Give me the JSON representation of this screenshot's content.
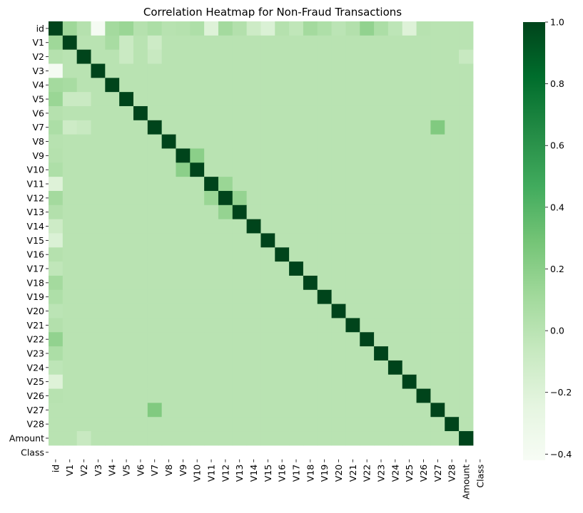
{
  "chart_data": {
    "type": "heatmap",
    "title": "Correlation Heatmap for Non-Fraud Transactions",
    "xlabel": "",
    "ylabel": "",
    "labels": [
      "id",
      "V1",
      "V2",
      "V3",
      "V4",
      "V5",
      "V6",
      "V7",
      "V8",
      "V9",
      "V10",
      "V11",
      "V12",
      "V13",
      "V14",
      "V15",
      "V16",
      "V17",
      "V18",
      "V19",
      "V20",
      "V21",
      "V22",
      "V23",
      "V24",
      "V25",
      "V26",
      "V27",
      "V28",
      "Amount",
      "Class"
    ],
    "colorscale": "Greens",
    "colorbar": {
      "min": -0.42,
      "max": 1.0,
      "ticks": [
        -0.4,
        -0.2,
        0.0,
        0.2,
        0.4,
        0.6,
        0.8,
        1.0
      ],
      "tick_labels": [
        "−0.4",
        "−0.2",
        "0.0",
        "0.2",
        "0.4",
        "0.6",
        "0.8",
        "1.0"
      ]
    },
    "nan_label": "Class",
    "values": [
      [
        1,
        0.12,
        0.02,
        -0.4,
        0.1,
        0.14,
        0.02,
        0.06,
        0.01,
        0.02,
        0.05,
        -0.2,
        0.1,
        0.03,
        -0.1,
        -0.18,
        0.02,
        -0.03,
        0.1,
        0.05,
        -0.01,
        0.03,
        0.17,
        0.06,
        -0.02,
        -0.2,
        0.01,
        0,
        0,
        0,
        null
      ],
      [
        0.12,
        1,
        0,
        0,
        0.08,
        -0.08,
        0,
        -0.1,
        0,
        0,
        0,
        0,
        0,
        0,
        0,
        0,
        0,
        0,
        0,
        0,
        0,
        0,
        0,
        0,
        0,
        0,
        0,
        0,
        0,
        0,
        null
      ],
      [
        0.02,
        0,
        1,
        0,
        0,
        -0.08,
        0,
        -0.07,
        0,
        0,
        0,
        0,
        0,
        0,
        0,
        0,
        0,
        0,
        0,
        0,
        0,
        0,
        0,
        0,
        0,
        0,
        0,
        0,
        0,
        -0.07,
        null
      ],
      [
        -0.4,
        0,
        0,
        1,
        0,
        0,
        0,
        0,
        0,
        0,
        0,
        0,
        0,
        0,
        0,
        0,
        0,
        0,
        0,
        0,
        0,
        0,
        0,
        0,
        0,
        0,
        0,
        0,
        0,
        0,
        null
      ],
      [
        0.1,
        0.08,
        0,
        0,
        1,
        0,
        0,
        0,
        0,
        0,
        0,
        0,
        0,
        0,
        0,
        0,
        0,
        0,
        0,
        0,
        0,
        0,
        0,
        0,
        0,
        0,
        0,
        0,
        0,
        0,
        null
      ],
      [
        0.14,
        -0.08,
        -0.08,
        0,
        0,
        1,
        0,
        0,
        0,
        0,
        0,
        0,
        0,
        0,
        0,
        0,
        0,
        0,
        0,
        0,
        0,
        0,
        0,
        0,
        0,
        0,
        0,
        0,
        0,
        0,
        null
      ],
      [
        0.02,
        0,
        0,
        0,
        0,
        0,
        1,
        0,
        0,
        0,
        0,
        0,
        0,
        0,
        0,
        0,
        0,
        0,
        0,
        0,
        0,
        0,
        0,
        0,
        0,
        0,
        0,
        0,
        0,
        0,
        null
      ],
      [
        0.06,
        -0.1,
        -0.07,
        0,
        0,
        0,
        0,
        1,
        0,
        0,
        0,
        0,
        0,
        0,
        0,
        0,
        0,
        0,
        0,
        0,
        0,
        0,
        0,
        0,
        0,
        0,
        0,
        0.24,
        0,
        0,
        null
      ],
      [
        0.01,
        0,
        0,
        0,
        0,
        0,
        0,
        0,
        1,
        0,
        0,
        0,
        0,
        0,
        0,
        0,
        0,
        0,
        0,
        0,
        0,
        0,
        0,
        0,
        0,
        0,
        0,
        0,
        0,
        0,
        null
      ],
      [
        0.02,
        0,
        0,
        0,
        0,
        0,
        0,
        0,
        0,
        1,
        0.2,
        0,
        0,
        0,
        0,
        0,
        0,
        0,
        0,
        0,
        0,
        0,
        0,
        0,
        0,
        0,
        0,
        0,
        0,
        0,
        null
      ],
      [
        0.05,
        0,
        0,
        0,
        0,
        0,
        0,
        0,
        0,
        0.2,
        1,
        0,
        0,
        0,
        0,
        0,
        0,
        0,
        0,
        0,
        0,
        0,
        0,
        0,
        0,
        0,
        0,
        0,
        0,
        0,
        null
      ],
      [
        -0.2,
        0,
        0,
        0,
        0,
        0,
        0,
        0,
        0,
        0,
        0,
        1,
        0.14,
        0,
        0,
        0,
        0,
        0,
        0,
        0,
        0,
        0,
        0,
        0,
        0,
        0,
        0,
        0,
        0,
        0,
        null
      ],
      [
        0.1,
        0,
        0,
        0,
        0,
        0,
        0,
        0,
        0,
        0,
        0,
        0.14,
        1,
        0.16,
        0,
        0,
        0,
        0,
        0,
        0,
        0,
        0,
        0,
        0,
        0,
        0,
        0,
        0,
        0,
        0,
        null
      ],
      [
        0.03,
        0,
        0,
        0,
        0,
        0,
        0,
        0,
        0,
        0,
        0,
        0,
        0.16,
        1,
        0,
        0,
        0,
        0,
        0,
        0,
        0,
        0,
        0,
        0,
        0,
        0,
        0,
        0,
        0,
        0,
        null
      ],
      [
        -0.1,
        0,
        0,
        0,
        0,
        0,
        0,
        0,
        0,
        0,
        0,
        0,
        0,
        0,
        1,
        0,
        0,
        0,
        0,
        0,
        0,
        0,
        0,
        0,
        0,
        0,
        0,
        0,
        0,
        0,
        null
      ],
      [
        -0.18,
        0,
        0,
        0,
        0,
        0,
        0,
        0,
        0,
        0,
        0,
        0,
        0,
        0,
        0,
        1,
        0,
        0,
        0,
        0,
        0,
        0,
        0,
        0,
        0,
        0,
        0,
        0,
        0,
        0,
        null
      ],
      [
        0.02,
        0,
        0,
        0,
        0,
        0,
        0,
        0,
        0,
        0,
        0,
        0,
        0,
        0,
        0,
        0,
        1,
        0,
        0,
        0,
        0,
        0,
        0,
        0,
        0,
        0,
        0,
        0,
        0,
        0,
        null
      ],
      [
        -0.03,
        0,
        0,
        0,
        0,
        0,
        0,
        0,
        0,
        0,
        0,
        0,
        0,
        0,
        0,
        0,
        0,
        1,
        0,
        0,
        0,
        0,
        0,
        0,
        0,
        0,
        0,
        0,
        0,
        0,
        null
      ],
      [
        0.1,
        0,
        0,
        0,
        0,
        0,
        0,
        0,
        0,
        0,
        0,
        0,
        0,
        0,
        0,
        0,
        0,
        0,
        1,
        0,
        0,
        0,
        0,
        0,
        0,
        0,
        0,
        0,
        0,
        0,
        null
      ],
      [
        0.05,
        0,
        0,
        0,
        0,
        0,
        0,
        0,
        0,
        0,
        0,
        0,
        0,
        0,
        0,
        0,
        0,
        0,
        0,
        1,
        0,
        0,
        0,
        0,
        0,
        0,
        0,
        0,
        0,
        0,
        null
      ],
      [
        -0.01,
        0,
        0,
        0,
        0,
        0,
        0,
        0,
        0,
        0,
        0,
        0,
        0,
        0,
        0,
        0,
        0,
        0,
        0,
        0,
        1,
        0,
        0,
        0,
        0,
        0,
        0,
        0,
        0,
        0,
        null
      ],
      [
        0.03,
        0,
        0,
        0,
        0,
        0,
        0,
        0,
        0,
        0,
        0,
        0,
        0,
        0,
        0,
        0,
        0,
        0,
        0,
        0,
        0,
        1,
        0,
        0,
        0,
        0,
        0,
        0,
        0,
        0,
        null
      ],
      [
        0.17,
        0,
        0,
        0,
        0,
        0,
        0,
        0,
        0,
        0,
        0,
        0,
        0,
        0,
        0,
        0,
        0,
        0,
        0,
        0,
        0,
        0,
        1,
        0,
        0,
        0,
        0,
        0,
        0,
        0,
        null
      ],
      [
        0.06,
        0,
        0,
        0,
        0,
        0,
        0,
        0,
        0,
        0,
        0,
        0,
        0,
        0,
        0,
        0,
        0,
        0,
        0,
        0,
        0,
        0,
        0,
        1,
        0,
        0,
        0,
        0,
        0,
        0,
        null
      ],
      [
        -0.02,
        0,
        0,
        0,
        0,
        0,
        0,
        0,
        0,
        0,
        0,
        0,
        0,
        0,
        0,
        0,
        0,
        0,
        0,
        0,
        0,
        0,
        0,
        0,
        1,
        0,
        0,
        0,
        0,
        0,
        null
      ],
      [
        -0.2,
        0,
        0,
        0,
        0,
        0,
        0,
        0,
        0,
        0,
        0,
        0,
        0,
        0,
        0,
        0,
        0,
        0,
        0,
        0,
        0,
        0,
        0,
        0,
        0,
        1,
        0,
        0,
        0,
        0,
        null
      ],
      [
        0.01,
        0,
        0,
        0,
        0,
        0,
        0,
        0,
        0,
        0,
        0,
        0,
        0,
        0,
        0,
        0,
        0,
        0,
        0,
        0,
        0,
        0,
        0,
        0,
        0,
        0,
        1,
        0,
        0,
        0,
        null
      ],
      [
        0,
        0,
        0,
        0,
        0,
        0,
        0,
        0.24,
        0,
        0,
        0,
        0,
        0,
        0,
        0,
        0,
        0,
        0,
        0,
        0,
        0,
        0,
        0,
        0,
        0,
        0,
        0,
        1,
        0,
        0,
        null
      ],
      [
        0,
        0,
        0,
        0,
        0,
        0,
        0,
        0,
        0,
        0,
        0,
        0,
        0,
        0,
        0,
        0,
        0,
        0,
        0,
        0,
        0,
        0,
        0,
        0,
        0,
        0,
        0,
        0,
        1,
        0,
        null
      ],
      [
        0,
        0,
        -0.07,
        0,
        0,
        0,
        0,
        0,
        0,
        0,
        0,
        0,
        0,
        0,
        0,
        0,
        0,
        0,
        0,
        0,
        0,
        0,
        0,
        0,
        0,
        0,
        0,
        0,
        0,
        1,
        null
      ],
      [
        null,
        null,
        null,
        null,
        null,
        null,
        null,
        null,
        null,
        null,
        null,
        null,
        null,
        null,
        null,
        null,
        null,
        null,
        null,
        null,
        null,
        null,
        null,
        null,
        null,
        null,
        null,
        null,
        null,
        null,
        null
      ]
    ],
    "grid": false,
    "legend": "colorbar-right"
  }
}
